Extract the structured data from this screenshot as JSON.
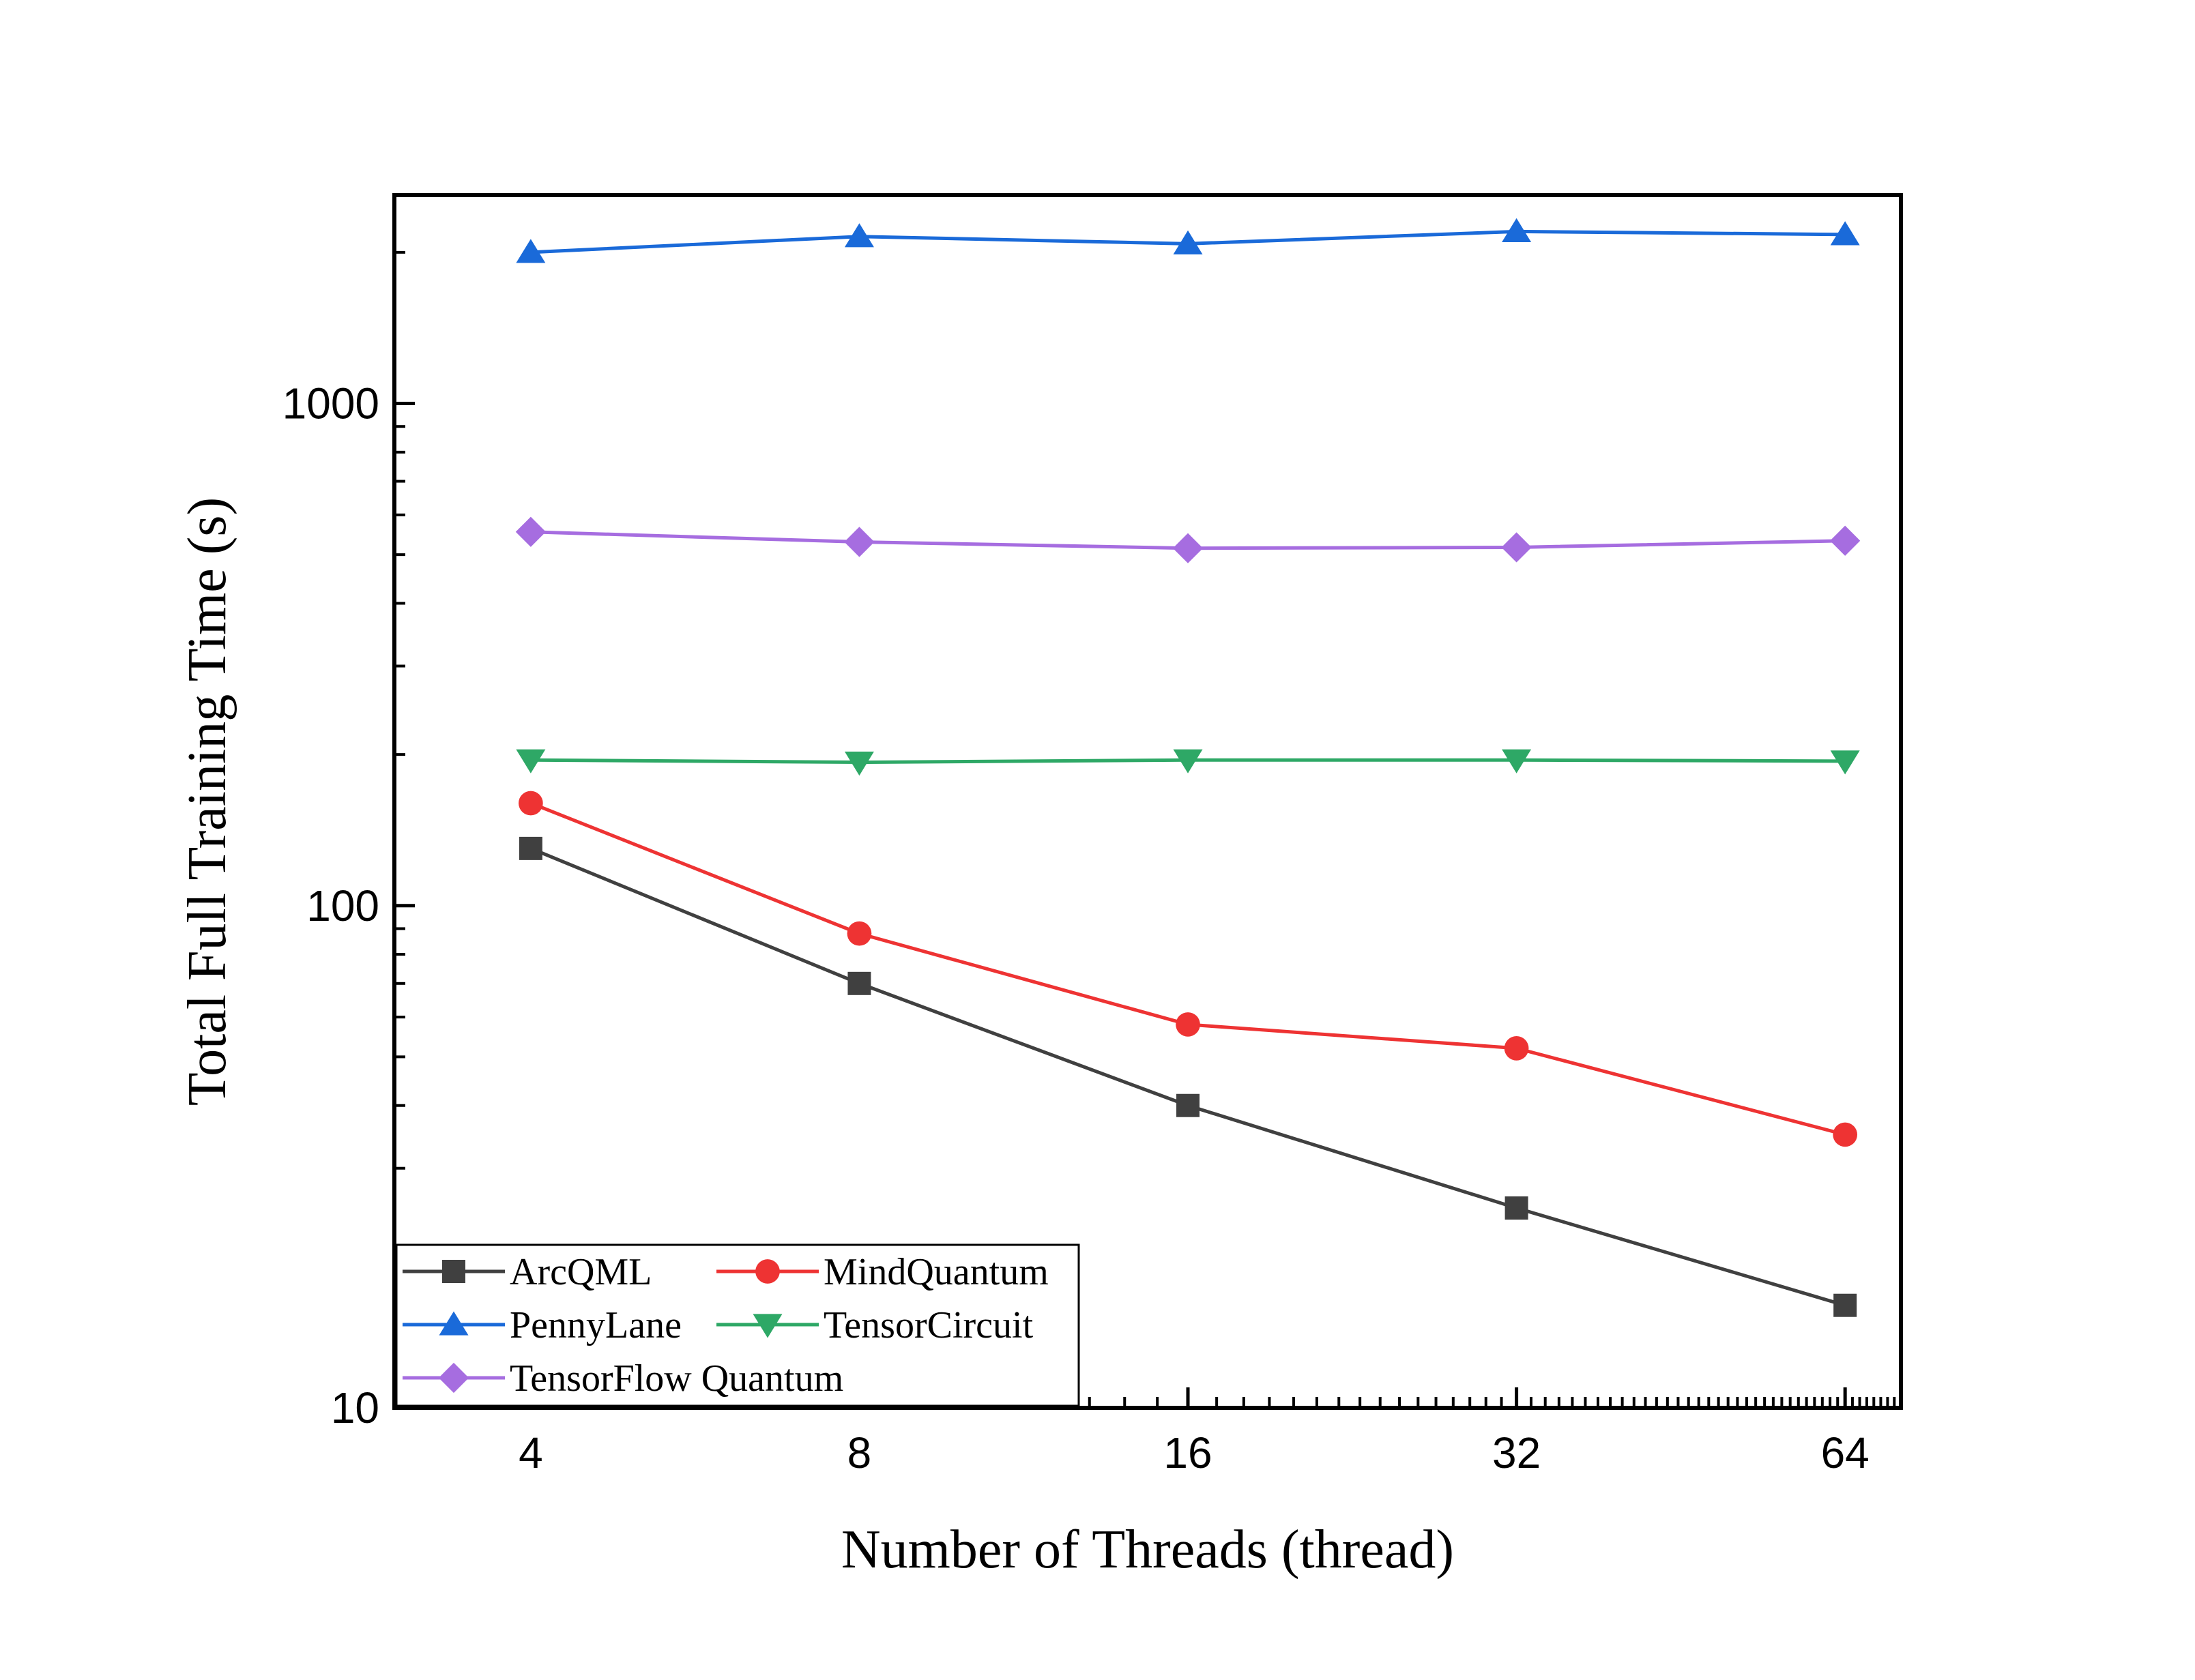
{
  "chart_data": {
    "type": "line",
    "title": "",
    "xlabel": "Number of Threads (thread)",
    "ylabel": "Total Full Training Time (s)",
    "x_scale": "log2",
    "y_scale": "log10",
    "x": [
      4,
      8,
      16,
      32,
      64
    ],
    "x_tick_labels": [
      "4",
      "8",
      "16",
      "32",
      "64"
    ],
    "y_ticks": [
      10,
      100,
      1000
    ],
    "y_tick_labels": [
      "10",
      "100",
      "1000"
    ],
    "xlim": [
      3,
      72
    ],
    "ylim": [
      10,
      2600
    ],
    "grid": false,
    "legend_position": "bottom-left",
    "series": [
      {
        "name": "ArcQML",
        "color": "#404040",
        "marker": "square",
        "values": [
          130,
          70,
          40,
          25,
          16
        ]
      },
      {
        "name": "MindQuantum",
        "color": "#ee3333",
        "marker": "circle",
        "values": [
          160,
          88,
          58,
          52,
          35
        ]
      },
      {
        "name": "PennyLane",
        "color": "#1a6ad9",
        "marker": "triangle-up",
        "values": [
          2000,
          2150,
          2080,
          2200,
          2170
        ]
      },
      {
        "name": "TensorCircuit",
        "color": "#2ea866",
        "marker": "triangle-down",
        "values": [
          195,
          193,
          195,
          195,
          194
        ]
      },
      {
        "name": "TensorFlow Quantum",
        "color": "#a66de0",
        "marker": "diamond",
        "values": [
          555,
          530,
          515,
          517,
          533
        ]
      }
    ]
  }
}
